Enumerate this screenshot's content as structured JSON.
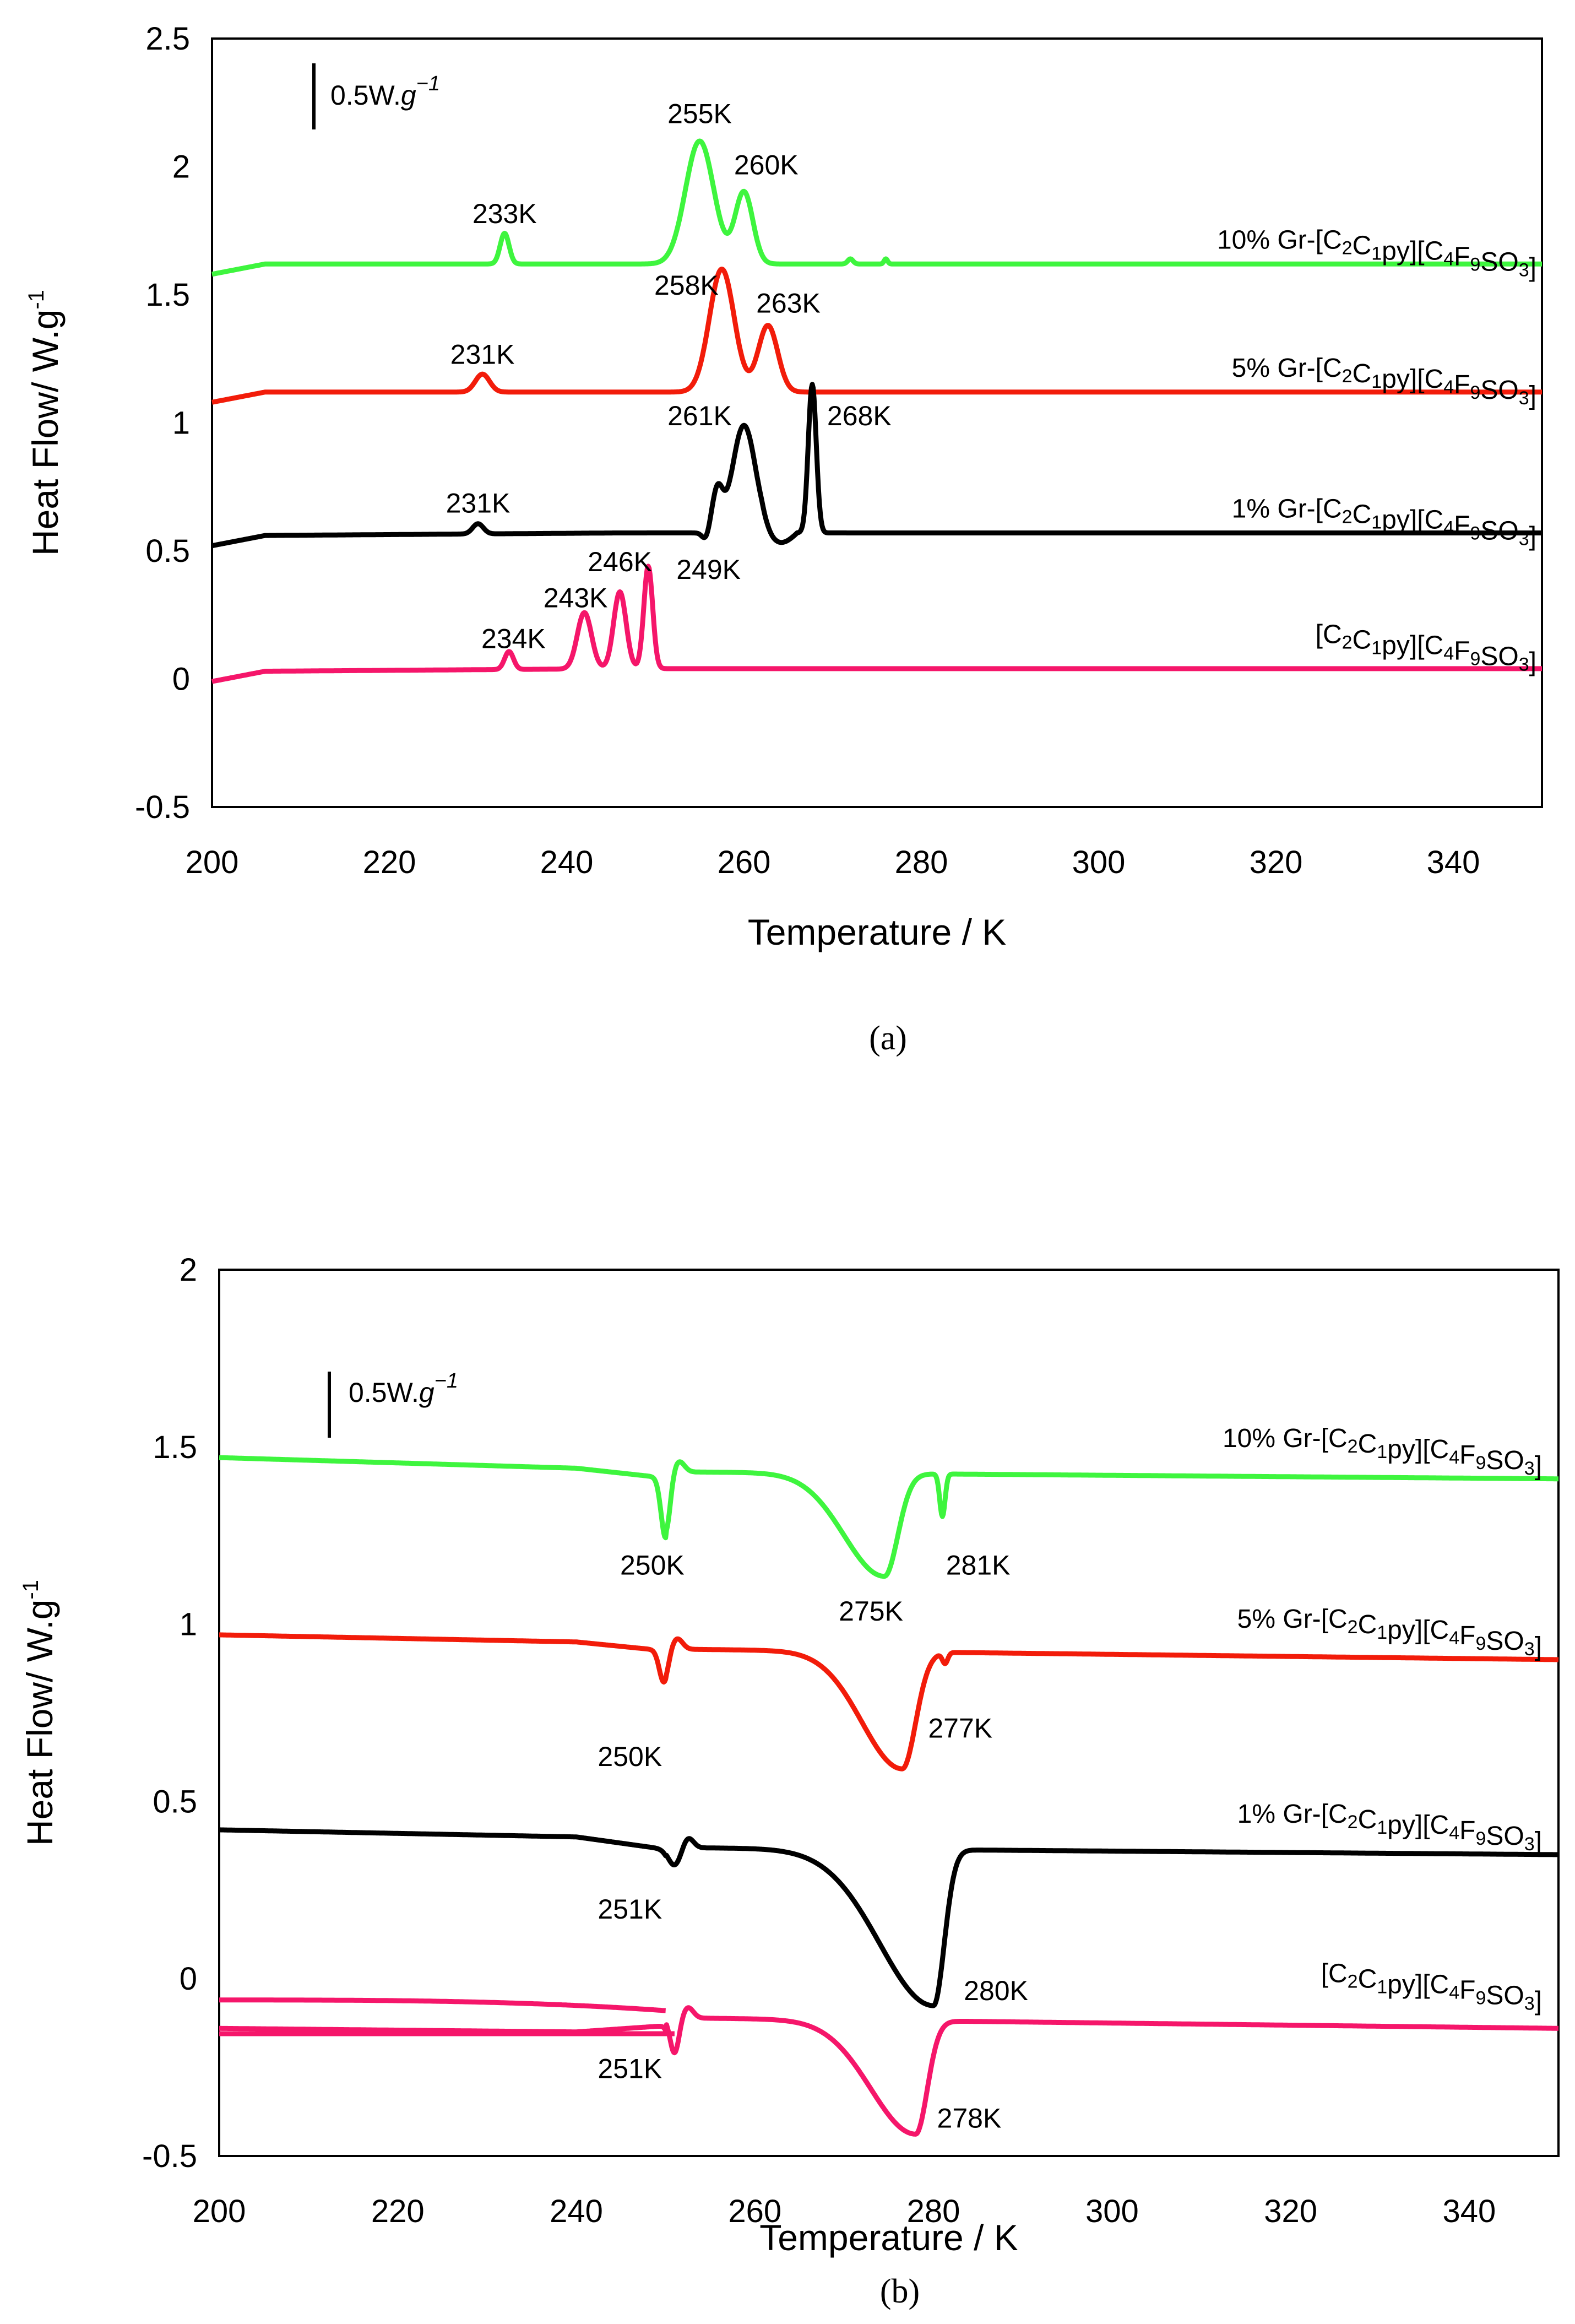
{
  "chart_data": [
    {
      "panel": "a",
      "type": "line",
      "caption": "(a)",
      "xlabel": "Temperature / K",
      "ylabel": "Heat Flow/ W.g",
      "ylabel_sup": "-1",
      "xlim": [
        200,
        350
      ],
      "ylim": [
        -0.5,
        2.5
      ],
      "xticks": [
        "200",
        "220",
        "240",
        "260",
        "280",
        "300",
        "320",
        "340"
      ],
      "yticks": [
        "-0.5",
        "0",
        "0.5",
        "1",
        "1.5",
        "2",
        "2.5"
      ],
      "scale_bar": {
        "label": "0.5W.",
        "unit_g": "g",
        "unit_exp": "−1",
        "value": 0.5
      },
      "series": [
        {
          "name_prefix": "10% Gr-",
          "name_main": "[C2C1py][C4F9SO3]",
          "color": "#3ef53e",
          "baseline": 1.62,
          "start": [
            1.58,
            1.62
          ],
          "peaks": [
            [
              233,
              0.12,
              0.5
            ],
            [
              255,
              0.48,
              1.6
            ],
            [
              260,
              0.28,
              1.0
            ],
            [
              272,
              0.02,
              0.3
            ],
            [
              276,
              0.02,
              0.2
            ]
          ]
        },
        {
          "name_prefix": "5% Gr-",
          "name_main": "[C2C1py][C4F9SO3]",
          "color": "#f21c0a",
          "baseline": 1.12,
          "start": [
            1.08,
            1.12
          ],
          "peaks": [
            [
              230.5,
              0.07,
              0.8
            ],
            [
              257.5,
              0.48,
              1.4
            ],
            [
              262.7,
              0.26,
              1.1
            ]
          ]
        },
        {
          "name_prefix": "1% Gr-",
          "name_main": "[C2C1py][C4F9SO3]",
          "color": "#000000",
          "baseline": 0.57,
          "start": [
            0.52,
            0.56
          ],
          "peaks": [
            [
              230,
              0.04,
              0.6
            ],
            [
              257,
              0.16,
              0.6
            ],
            [
              260,
              0.42,
              1.3
            ],
            [
              267.7,
              0.58,
              0.45
            ]
          ]
        },
        {
          "name_prefix": "",
          "name_main": "[C2C1py][C4F9SO3]",
          "color": "#f5166a",
          "baseline": 0.04,
          "start": [
            -0.01,
            0.03
          ],
          "peaks": [
            [
              233.5,
              0.07,
              0.5
            ],
            [
              242,
              0.22,
              0.8
            ],
            [
              246,
              0.3,
              0.7
            ],
            [
              249.2,
              0.4,
              0.5
            ]
          ]
        }
      ],
      "annotations": [
        {
          "text": "233K",
          "x": 233,
          "y": 1.78
        },
        {
          "text": "255K",
          "x": 255,
          "y": 2.17
        },
        {
          "text": "260K",
          "x": 262.5,
          "y": 1.97
        },
        {
          "text": "231K",
          "x": 230.5,
          "y": 1.23
        },
        {
          "text": "258K",
          "x": 253.5,
          "y": 1.5
        },
        {
          "text": "263K",
          "x": 265,
          "y": 1.43
        },
        {
          "text": "261K",
          "x": 255,
          "y": 0.99
        },
        {
          "text": "268K",
          "x": 273,
          "y": 0.99
        },
        {
          "text": "231K",
          "x": 230,
          "y": 0.65
        },
        {
          "text": "246K",
          "x": 246,
          "y": 0.42
        },
        {
          "text": "243K",
          "x": 241,
          "y": 0.28
        },
        {
          "text": "249K",
          "x": 256,
          "y": 0.39
        },
        {
          "text": "234K",
          "x": 234,
          "y": 0.12
        }
      ]
    },
    {
      "panel": "b",
      "type": "line",
      "caption": "(b)",
      "xlabel": "Temperature / K",
      "ylabel": "Heat Flow/ W.g",
      "ylabel_sup": "-1",
      "xlim": [
        200,
        350
      ],
      "ylim": [
        -0.5,
        2
      ],
      "xticks": [
        "200",
        "220",
        "240",
        "260",
        "280",
        "300",
        "320",
        "340"
      ],
      "yticks": [
        "-0.5",
        "0",
        "0.5",
        "1",
        "1.5",
        "2"
      ],
      "scale_bar": {
        "label": "0.5W.",
        "unit_g": "g",
        "unit_exp": "−1",
        "value": 0.5
      },
      "series": [
        {
          "name_prefix": "10% Gr-",
          "name_main": "[C2C1py][C4F9SO3]",
          "color": "#3ef53e",
          "pre": [
            1.47,
            1.44,
            1.42
          ],
          "post": [
            1.43,
            1.41
          ],
          "step": [
            251,
            1.44,
            1.42
          ],
          "dip": [
            250,
            -0.17,
            0.5
          ],
          "main": [
            274.5,
            0.29,
            4.5,
            1.5,
            1.47
          ],
          "sharp": [
            281,
            -0.12,
            0.3
          ]
        },
        {
          "name_prefix": "5% Gr-",
          "name_main": "[C2C1py][C4F9SO3]",
          "color": "#f21c0a",
          "pre": [
            0.97,
            0.95,
            0.93
          ],
          "post": [
            0.93,
            0.9
          ],
          "step": [
            251,
            0.93,
            0.92
          ],
          "dip": [
            249.8,
            -0.09,
            0.5
          ],
          "main": [
            276.5,
            0.33,
            4.5,
            1.5,
            0.96
          ],
          "sharp": [
            281.3,
            -0.03,
            0.3
          ]
        },
        {
          "name_prefix": "1% Gr-",
          "name_main": "[C2C1py][C4F9SO3]",
          "color": "#000000",
          "pre": [
            0.42,
            0.4,
            0.37
          ],
          "post": [
            0.37,
            0.35
          ],
          "step": [
            251,
            0.37,
            0.37
          ],
          "dip": [
            251,
            -0.05,
            0.7
          ],
          "main": [
            280,
            0.44,
            6,
            1.2,
            0.37
          ],
          "sharp": null
        },
        {
          "name_prefix": "",
          "name_main": "[C2C1py][C4F9SO3]",
          "color": "#f5166a",
          "pre": [
            -0.14,
            -0.15,
            -0.13
          ],
          "post": [
            -0.11,
            -0.14
          ],
          "step": [
            251,
            -0.12,
            -0.12
          ],
          "dip": [
            251,
            -0.1,
            0.5
          ],
          "main": [
            278,
            0.32,
            5,
            1.3,
            -0.11
          ],
          "sharp": null,
          "extra_trace": [
            -0.06,
            -0.09
          ]
        }
      ],
      "annotations": [
        {
          "text": "250K",
          "x": 248.5,
          "y": 1.14
        },
        {
          "text": "275K",
          "x": 273,
          "y": 1.01
        },
        {
          "text": "281K",
          "x": 285,
          "y": 1.14
        },
        {
          "text": "250K",
          "x": 246,
          "y": 0.6
        },
        {
          "text": "277K",
          "x": 283,
          "y": 0.68
        },
        {
          "text": "251K",
          "x": 246,
          "y": 0.17
        },
        {
          "text": "280K",
          "x": 287,
          "y": -0.06
        },
        {
          "text": "251K",
          "x": 246,
          "y": -0.28
        },
        {
          "text": "278K",
          "x": 284,
          "y": -0.42
        }
      ]
    }
  ]
}
